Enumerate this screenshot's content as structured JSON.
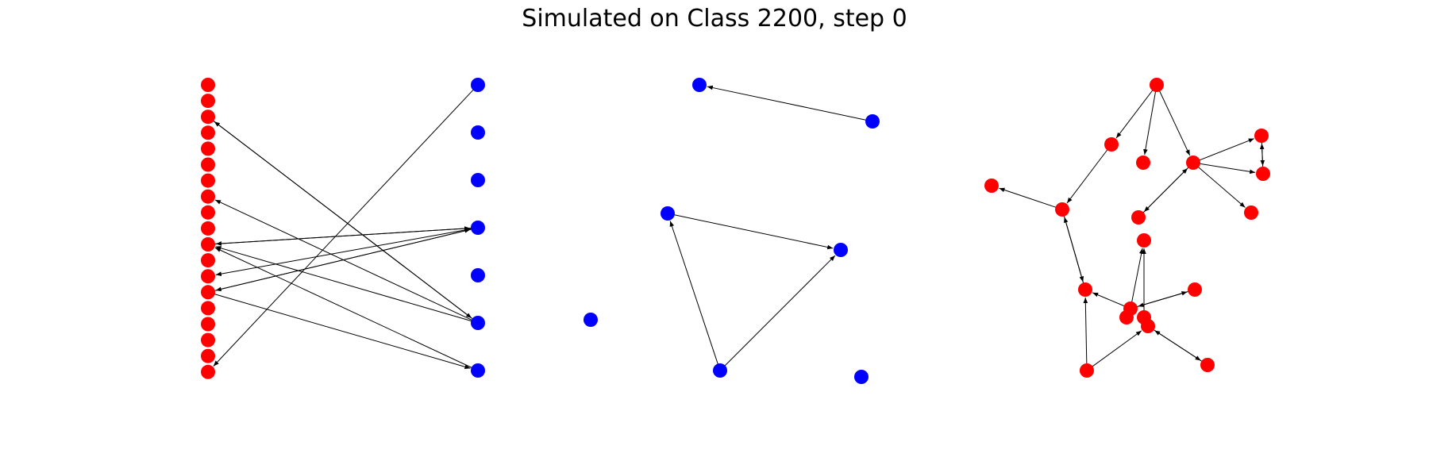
{
  "title": "Simulated on Class 2200, step 0",
  "colors": {
    "red": "#ff0000",
    "blue": "#0000ff",
    "edge": "#000000"
  },
  "graphs": [
    {
      "id": "bipartite",
      "nodes": [
        {
          "id": "r0",
          "c": "red"
        },
        {
          "id": "r1",
          "c": "red"
        },
        {
          "id": "r2",
          "c": "red"
        },
        {
          "id": "r3",
          "c": "red"
        },
        {
          "id": "r4",
          "c": "red"
        },
        {
          "id": "r5",
          "c": "red"
        },
        {
          "id": "r6",
          "c": "red"
        },
        {
          "id": "r7",
          "c": "red"
        },
        {
          "id": "r8",
          "c": "red"
        },
        {
          "id": "r9",
          "c": "red"
        },
        {
          "id": "r10",
          "c": "red"
        },
        {
          "id": "r11",
          "c": "red"
        },
        {
          "id": "r12",
          "c": "red"
        },
        {
          "id": "r13",
          "c": "red"
        },
        {
          "id": "r14",
          "c": "red"
        },
        {
          "id": "r15",
          "c": "red"
        },
        {
          "id": "r16",
          "c": "red"
        },
        {
          "id": "r17",
          "c": "red"
        },
        {
          "id": "r18",
          "c": "red"
        },
        {
          "id": "b0",
          "c": "blue"
        },
        {
          "id": "b1",
          "c": "blue"
        },
        {
          "id": "b2",
          "c": "blue"
        },
        {
          "id": "b3",
          "c": "blue"
        },
        {
          "id": "b4",
          "c": "blue"
        },
        {
          "id": "b5",
          "c": "blue"
        },
        {
          "id": "b6",
          "c": "blue"
        }
      ],
      "edges": [
        {
          "from": "b0",
          "to": "r18"
        },
        {
          "from": "r2",
          "to": "b5"
        },
        {
          "from": "b5",
          "to": "r2"
        },
        {
          "from": "b5",
          "to": "r7"
        },
        {
          "from": "r10",
          "to": "b3"
        },
        {
          "from": "b3",
          "to": "r10"
        },
        {
          "from": "b3",
          "to": "r12"
        },
        {
          "from": "r13",
          "to": "b3"
        },
        {
          "from": "b3",
          "to": "r13"
        },
        {
          "from": "b5",
          "to": "r10"
        },
        {
          "from": "b6",
          "to": "r10"
        },
        {
          "from": "r13",
          "to": "b6"
        }
      ]
    },
    {
      "id": "blue-graph",
      "nodes": [
        {
          "id": "n0",
          "c": "blue"
        },
        {
          "id": "n1",
          "c": "blue"
        },
        {
          "id": "n2",
          "c": "blue"
        },
        {
          "id": "n3",
          "c": "blue"
        },
        {
          "id": "n4",
          "c": "blue"
        },
        {
          "id": "n5",
          "c": "blue"
        },
        {
          "id": "n6",
          "c": "blue"
        }
      ],
      "edges": [
        {
          "from": "n1",
          "to": "n0"
        },
        {
          "from": "n2",
          "to": "n3"
        },
        {
          "from": "n5",
          "to": "n2"
        },
        {
          "from": "n5",
          "to": "n3"
        }
      ]
    },
    {
      "id": "red-graph",
      "nodes": [
        {
          "id": "m0",
          "c": "red"
        },
        {
          "id": "m1",
          "c": "red"
        },
        {
          "id": "m2",
          "c": "red"
        },
        {
          "id": "m3",
          "c": "red"
        },
        {
          "id": "m4",
          "c": "red"
        },
        {
          "id": "m5",
          "c": "red"
        },
        {
          "id": "m6",
          "c": "red"
        },
        {
          "id": "m7",
          "c": "red"
        },
        {
          "id": "m8",
          "c": "red"
        },
        {
          "id": "m9",
          "c": "red"
        },
        {
          "id": "m10",
          "c": "red"
        },
        {
          "id": "m11",
          "c": "red"
        },
        {
          "id": "m12",
          "c": "red"
        },
        {
          "id": "m13",
          "c": "red"
        },
        {
          "id": "m14",
          "c": "red"
        },
        {
          "id": "m15",
          "c": "red"
        },
        {
          "id": "m16",
          "c": "red"
        },
        {
          "id": "m17",
          "c": "red"
        },
        {
          "id": "m18",
          "c": "red"
        }
      ],
      "edges": [
        {
          "from": "m0",
          "to": "m1"
        },
        {
          "from": "m0",
          "to": "m2"
        },
        {
          "from": "m0",
          "to": "m3"
        },
        {
          "from": "m1",
          "to": "m6"
        },
        {
          "from": "m6",
          "to": "m5"
        },
        {
          "from": "m3",
          "to": "m4"
        },
        {
          "from": "m3",
          "to": "m8"
        },
        {
          "from": "m3",
          "to": "m7"
        },
        {
          "from": "m3",
          "to": "m9"
        },
        {
          "from": "m9",
          "to": "m3"
        },
        {
          "from": "m4",
          "to": "m7"
        },
        {
          "from": "m7",
          "to": "m4"
        },
        {
          "from": "m6",
          "to": "m11"
        },
        {
          "from": "m11",
          "to": "m6"
        },
        {
          "from": "m13",
          "to": "m11"
        },
        {
          "from": "m13",
          "to": "m12"
        },
        {
          "from": "m13",
          "to": "m10"
        },
        {
          "from": "m15",
          "to": "m10"
        },
        {
          "from": "m17",
          "to": "m11"
        },
        {
          "from": "m17",
          "to": "m16"
        },
        {
          "from": "m12",
          "to": "m13"
        },
        {
          "from": "m16",
          "to": "m18"
        },
        {
          "from": "m18",
          "to": "m16"
        }
      ]
    }
  ]
}
